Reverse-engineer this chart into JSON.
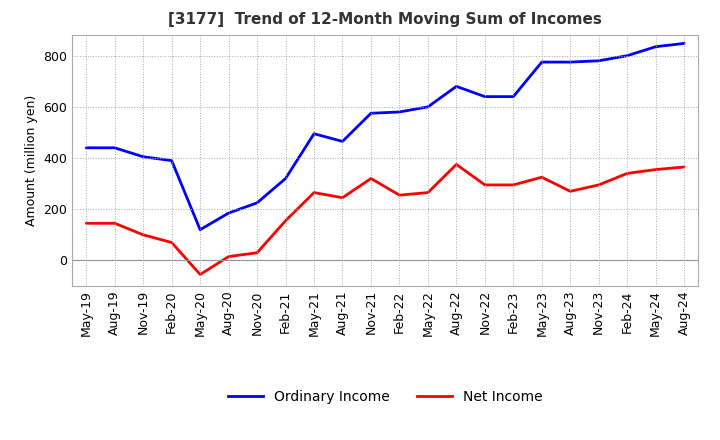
{
  "title": "[3177]  Trend of 12-Month Moving Sum of Incomes",
  "ylabel": "Amount (million yen)",
  "background_color": "#ffffff",
  "grid_color": "#aaaaaa",
  "x_labels": [
    "May-19",
    "Aug-19",
    "Nov-19",
    "Feb-20",
    "May-20",
    "Aug-20",
    "Nov-20",
    "Feb-21",
    "May-21",
    "Aug-21",
    "Nov-21",
    "Feb-22",
    "May-22",
    "Aug-22",
    "Nov-22",
    "Feb-23",
    "May-23",
    "Aug-23",
    "Nov-23",
    "Feb-24",
    "May-24",
    "Aug-24"
  ],
  "ordinary_income": [
    440,
    440,
    405,
    390,
    120,
    185,
    225,
    320,
    495,
    465,
    575,
    580,
    600,
    680,
    640,
    640,
    775,
    775,
    780,
    800,
    835,
    848
  ],
  "net_income": [
    145,
    145,
    100,
    70,
    -55,
    15,
    30,
    155,
    265,
    245,
    320,
    255,
    265,
    375,
    295,
    295,
    325,
    270,
    295,
    340,
    355,
    365
  ],
  "ordinary_income_color": "#0000ff",
  "net_income_color": "#ff0000",
  "ylim": [
    -100,
    880
  ],
  "yticks": [
    0,
    200,
    400,
    600,
    800
  ],
  "line_width": 2.0,
  "title_fontsize": 11,
  "axis_fontsize": 9,
  "legend_fontsize": 10
}
